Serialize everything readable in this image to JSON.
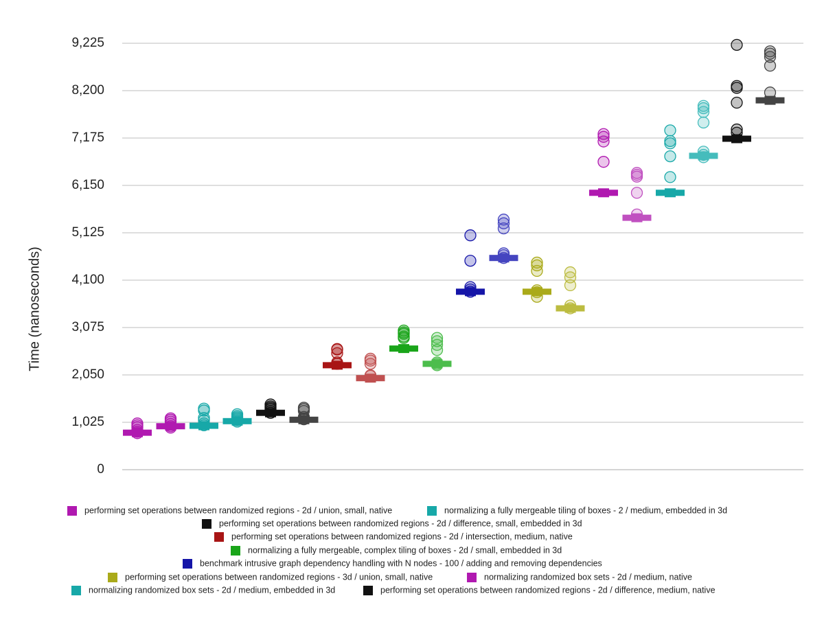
{
  "chart_data": {
    "type": "scatter",
    "title": "",
    "xlabel": "",
    "ylabel": "Time (nanoseconds)",
    "yticks": [
      "0",
      "1,025",
      "2,050",
      "3,075",
      "4,100",
      "5,125",
      "6,150",
      "7,175",
      "8,200",
      "9,225"
    ],
    "ylim": [
      0,
      9225
    ],
    "grid": true,
    "legend_position": "bottom",
    "series": [
      {
        "name": "performing set operations between randomized regions - 2d / union, small, native",
        "color": "#b019b0",
        "median": 800,
        "points": [
          790,
          820,
          860,
          920,
          960,
          1000
        ]
      },
      {
        "name": "normalizing randomized box sets - 2d / medium, native",
        "color": "#b019b0",
        "median": 940,
        "points": [
          910,
          940,
          990,
          1040,
          1080,
          1110
        ]
      },
      {
        "name": "normalizing a fully mergeable tiling of boxes - 2 / medium, embedded in 3d",
        "color": "#17a8a8",
        "median": 950,
        "points": [
          960,
          1000,
          1070,
          1120,
          1280,
          1320
        ]
      },
      {
        "name": "normalizing randomized box sets - 2d / medium, embedded in 3d",
        "color": "#17a8a8",
        "median": 1050,
        "points": [
          1040,
          1070,
          1100,
          1130,
          1160,
          1200
        ]
      },
      {
        "name": "performing set operations between randomized regions - 2d / difference, small, embedded in 3d",
        "color": "#111111",
        "median": 1230,
        "points": [
          1230,
          1270,
          1310,
          1340,
          1370,
          1410
        ]
      },
      {
        "name": "performing set operations between randomized regions - 2d / difference, medium, native",
        "color": "#444444",
        "median": 1080,
        "points": [
          1090,
          1110,
          1140,
          1270,
          1310,
          1340
        ]
      },
      {
        "name": "performing set operations between randomized regions - 2d / intersection, medium, native",
        "color": "#a81515",
        "median": 2260,
        "points": [
          2290,
          2320,
          2520,
          2600,
          2610
        ]
      },
      {
        "name": "performing set operations between randomized regions - 2d / intersection, medium, native",
        "color": "#c05050",
        "median": 1980,
        "points": [
          2030,
          2040,
          2290,
          2360,
          2400
        ]
      },
      {
        "name": "normalizing a fully mergeable, complex tiling of boxes - 2d / small, embedded in 3d",
        "color": "#1aa51a",
        "median": 2620,
        "points": [
          2850,
          2880,
          2940,
          2970,
          3010
        ]
      },
      {
        "name": "normalizing a fully mergeable, complex tiling of boxes - 2d / small, embedded in 3d",
        "color": "#4cbd4c",
        "median": 2290,
        "points": [
          2260,
          2290,
          2320,
          2590,
          2700,
          2780,
          2850
        ]
      },
      {
        "name": "benchmark intrusive graph dependency handling with N nodes - 100 / adding and removing dependencies",
        "color": "#1515a8",
        "median": 3850,
        "points": [
          3850,
          3900,
          3950,
          4520,
          5070
        ]
      },
      {
        "name": "benchmark intrusive graph dependency handling with N nodes - 100 / adding and removing dependencies",
        "color": "#4545c0",
        "median": 4580,
        "points": [
          4580,
          4640,
          4680,
          5220,
          5330,
          5410
        ]
      },
      {
        "name": "performing set operations between randomized regions - 3d / union, small, native",
        "color": "#aaaa1a",
        "median": 3850,
        "points": [
          3740,
          3840,
          3880,
          4300,
          4420,
          4480
        ]
      },
      {
        "name": "performing set operations between randomized regions - 3d / union, small, native",
        "color": "#bcbc40",
        "median": 3490,
        "points": [
          3490,
          3550,
          3990,
          4160,
          4270
        ]
      },
      {
        "name": "normalizing randomized box sets - 2d / medium, native",
        "color": "#b019b0",
        "median": 5990,
        "points": [
          6660,
          7100,
          7200,
          7260
        ]
      },
      {
        "name": "normalizing randomized box sets - 2d / medium, native",
        "color": "#c050c0",
        "median": 5450,
        "points": [
          5520,
          5990,
          6340,
          6380,
          6420
        ]
      },
      {
        "name": "normalizing randomized box sets - 2d / medium, embedded in 3d",
        "color": "#17a8a8",
        "median": 5990,
        "points": [
          6330,
          6780,
          7060,
          7110,
          7340
        ]
      },
      {
        "name": "normalizing randomized box sets - 2d / medium, embedded in 3d",
        "color": "#45bcbc",
        "median": 6790,
        "points": [
          6760,
          6810,
          6880,
          7510,
          7740,
          7820,
          7870
        ]
      },
      {
        "name": "performing set operations between randomized regions - 2d / difference, medium, native",
        "color": "#111111",
        "median": 7160,
        "points": [
          7290,
          7360,
          7940,
          8260,
          8300,
          9190
        ]
      },
      {
        "name": "performing set operations between randomized regions - 2d / difference, medium, native",
        "color": "#444444",
        "median": 7990,
        "points": [
          8160,
          8740,
          8930,
          9000,
          9050
        ]
      }
    ],
    "legend": [
      {
        "label": "performing set operations between randomized regions - 2d / union, small, native",
        "color": "#b019b0"
      },
      {
        "label": "normalizing a fully mergeable tiling of boxes - 2 / medium, embedded in 3d",
        "color": "#17a8a8"
      },
      {
        "label": "performing set operations between randomized regions - 2d / difference, small, embedded in 3d",
        "color": "#111111"
      },
      {
        "label": "performing set operations between randomized regions - 2d / intersection, medium, native",
        "color": "#a81515"
      },
      {
        "label": "normalizing a fully mergeable, complex tiling of boxes - 2d / small, embedded in 3d",
        "color": "#1aa51a"
      },
      {
        "label": "benchmark intrusive graph dependency handling with N nodes - 100 / adding and removing dependencies",
        "color": "#1515a8"
      },
      {
        "label": "performing set operations between randomized regions - 3d / union, small, native",
        "color": "#aaaa1a"
      },
      {
        "label": "normalizing randomized box sets - 2d / medium, native",
        "color": "#b019b0"
      },
      {
        "label": "normalizing randomized box sets - 2d / medium, embedded in 3d",
        "color": "#17a8a8"
      },
      {
        "label": "performing set operations between randomized regions - 2d / difference, medium, native",
        "color": "#111111"
      }
    ]
  }
}
